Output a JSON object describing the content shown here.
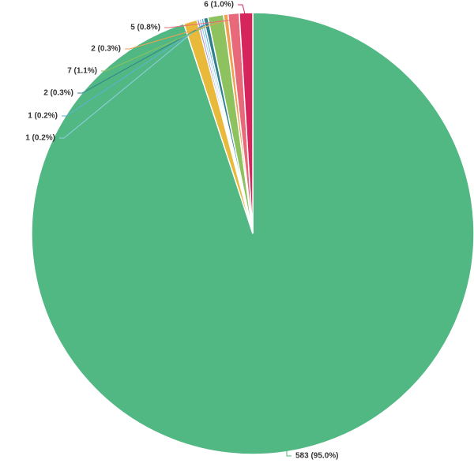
{
  "chart_data": {
    "type": "pie",
    "values": [
      583,
      6,
      1,
      1,
      1,
      2,
      7,
      2,
      5,
      6
    ],
    "value_labels": [
      "583 (95.0%)",
      null,
      null,
      "1 (0.2%)",
      "1 (0.2%)",
      "2 (0.3%)",
      "7 (1.1%)",
      "2 (0.3%)",
      "5 (0.8%)",
      "6 (1.0%)"
    ],
    "colors": [
      "#52b883",
      "#e8b93a",
      "#a98bd6",
      "#8fd0e8",
      "#5bb2d6",
      "#2f7f8f",
      "#8dc25f",
      "#f0a050",
      "#e86a7a",
      "#d6245d"
    ]
  }
}
